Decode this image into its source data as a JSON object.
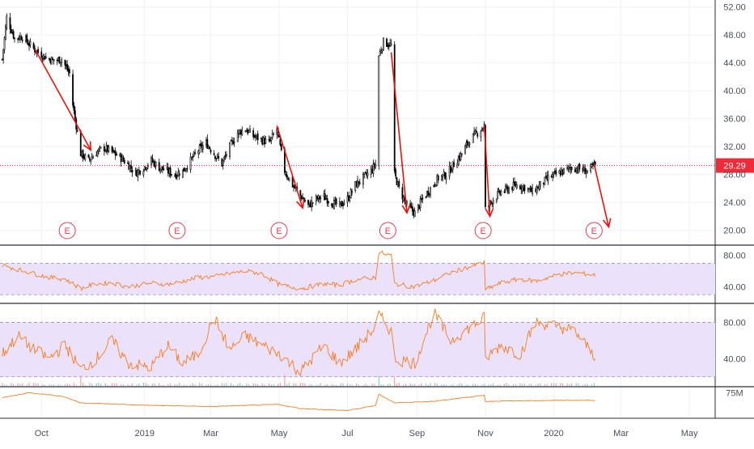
{
  "colors": {
    "up_candle": "#ffffff",
    "down_candle": "#000000",
    "candle_outline": "#000000",
    "arrow": "#e8120e",
    "price_line": "#e8120e",
    "price_label_bg": "#ef2b3a",
    "earnings_marker": "#e33b4f",
    "oscillator_line": "#f57c25",
    "band_fill": "#ece1fb",
    "band_border": "#9c8ab0",
    "grid": "#eef1f6",
    "axis_text": "#4a4f5c",
    "volume_up": "#8fcfc6",
    "volume_down": "#f0a3a3"
  },
  "icons": {
    "earnings": "earnings-circle-E-icon",
    "arrow": "red-down-arrow-icon"
  },
  "labels": {
    "last_price": "29.29",
    "earnings_letter": "E"
  },
  "chart_data": [
    {
      "type": "candlestick",
      "title": "",
      "y_ticks": [
        "52.00",
        "48.00",
        "44.00",
        "40.00",
        "36.00",
        "32.00",
        "28.00",
        "24.00",
        "20.00"
      ],
      "y_tick_values": [
        52,
        48,
        44,
        40,
        36,
        32,
        28,
        24,
        20
      ],
      "ylim": [
        18,
        53
      ],
      "x_ticks": [
        "Oct",
        "2019",
        "Mar",
        "May",
        "Jul",
        "Sep",
        "Nov",
        "2020",
        "Mar",
        "May"
      ],
      "x_tick_dates": [
        "2018-10-01",
        "2019-01-01",
        "2019-03-01",
        "2019-05-01",
        "2019-07-01",
        "2019-09-01",
        "2019-11-01",
        "2020-01-01",
        "2020-03-01",
        "2020-05-01"
      ],
      "date_range": [
        "2018-08-25",
        "2020-05-24"
      ],
      "last_price": 29.29,
      "price_path": [
        [
          "2018-08-27",
          44.5
        ],
        [
          "2018-08-31",
          50.5
        ],
        [
          "2018-09-07",
          47.5
        ],
        [
          "2018-09-14",
          47.8
        ],
        [
          "2018-09-21",
          46.5
        ],
        [
          "2018-09-28",
          45.5
        ],
        [
          "2018-10-05",
          44.8
        ],
        [
          "2018-10-12",
          44.3
        ],
        [
          "2018-10-19",
          44.5
        ],
        [
          "2018-10-26",
          42.5
        ],
        [
          "2018-10-29",
          38.0
        ],
        [
          "2018-11-01",
          35.0
        ],
        [
          "2018-11-05",
          31.0
        ],
        [
          "2018-11-12",
          30.0
        ],
        [
          "2018-11-19",
          31.2
        ],
        [
          "2018-11-26",
          31.8
        ],
        [
          "2018-12-03",
          31.2
        ],
        [
          "2018-12-10",
          30.5
        ],
        [
          "2018-12-17",
          29.5
        ],
        [
          "2018-12-24",
          28.2
        ],
        [
          "2018-12-31",
          29.0
        ],
        [
          "2019-01-07",
          30.0
        ],
        [
          "2019-01-14",
          29.0
        ],
        [
          "2019-01-21",
          28.5
        ],
        [
          "2019-01-28",
          28.0
        ],
        [
          "2019-02-04",
          28.5
        ],
        [
          "2019-02-11",
          30.0
        ],
        [
          "2019-02-18",
          31.5
        ],
        [
          "2019-02-25",
          32.5
        ],
        [
          "2019-03-04",
          31.0
        ],
        [
          "2019-03-11",
          29.5
        ],
        [
          "2019-03-18",
          32.0
        ],
        [
          "2019-03-25",
          34.0
        ],
        [
          "2019-04-01",
          34.5
        ],
        [
          "2019-04-08",
          33.5
        ],
        [
          "2019-04-15",
          33.0
        ],
        [
          "2019-04-22",
          32.5
        ],
        [
          "2019-04-29",
          34.5
        ],
        [
          "2019-05-03",
          31.0
        ],
        [
          "2019-05-06",
          28.5
        ],
        [
          "2019-05-13",
          26.5
        ],
        [
          "2019-05-20",
          25.0
        ],
        [
          "2019-05-27",
          23.5
        ],
        [
          "2019-06-03",
          24.5
        ],
        [
          "2019-06-10",
          24.8
        ],
        [
          "2019-06-17",
          24.0
        ],
        [
          "2019-06-24",
          23.5
        ],
        [
          "2019-07-01",
          24.5
        ],
        [
          "2019-07-08",
          26.5
        ],
        [
          "2019-07-15",
          27.5
        ],
        [
          "2019-07-22",
          28.5
        ],
        [
          "2019-07-26",
          29.5
        ],
        [
          "2019-07-29",
          45.0
        ],
        [
          "2019-08-02",
          47.0
        ],
        [
          "2019-08-09",
          46.5
        ],
        [
          "2019-08-12",
          28.0
        ],
        [
          "2019-08-16",
          26.0
        ],
        [
          "2019-08-23",
          23.5
        ],
        [
          "2019-08-30",
          22.5
        ],
        [
          "2019-09-06",
          24.5
        ],
        [
          "2019-09-13",
          26.0
        ],
        [
          "2019-09-20",
          27.5
        ],
        [
          "2019-09-27",
          28.0
        ],
        [
          "2019-10-04",
          29.5
        ],
        [
          "2019-10-11",
          31.0
        ],
        [
          "2019-10-18",
          33.0
        ],
        [
          "2019-10-25",
          34.0
        ],
        [
          "2019-10-31",
          35.0
        ],
        [
          "2019-11-01",
          23.0
        ],
        [
          "2019-11-08",
          24.5
        ],
        [
          "2019-11-15",
          25.5
        ],
        [
          "2019-11-22",
          26.0
        ],
        [
          "2019-11-29",
          26.5
        ],
        [
          "2019-12-06",
          26.2
        ],
        [
          "2019-12-13",
          25.5
        ],
        [
          "2019-12-20",
          26.5
        ],
        [
          "2019-12-27",
          27.5
        ],
        [
          "2020-01-03",
          28.0
        ],
        [
          "2020-01-10",
          28.5
        ],
        [
          "2020-01-17",
          29.0
        ],
        [
          "2020-01-24",
          28.8
        ],
        [
          "2020-01-31",
          28.5
        ],
        [
          "2020-02-07",
          29.29
        ]
      ],
      "earnings_dates": [
        "2018-10-24",
        "2019-01-30",
        "2019-05-01",
        "2019-08-06",
        "2019-10-30",
        "2020-02-06"
      ],
      "arrows": [
        {
          "from": [
            "2018-09-25",
            46.0
          ],
          "to": [
            "2018-11-14",
            31.5
          ]
        },
        {
          "from": [
            "2019-04-29",
            35.0
          ],
          "to": [
            "2019-05-22",
            23.2
          ]
        },
        {
          "from": [
            "2019-08-09",
            45.5
          ],
          "to": [
            "2019-08-23",
            22.5
          ]
        },
        {
          "from": [
            "2019-10-31",
            35.0
          ],
          "to": [
            "2019-11-05",
            22.0
          ]
        },
        {
          "from": [
            "2020-02-06",
            29.5
          ],
          "to": [
            "2020-02-19",
            20.5
          ]
        }
      ]
    },
    {
      "type": "line",
      "series": [
        {
          "values_path": [
            [
              "2018-08-27",
              68
            ],
            [
              "2018-09-10",
              62
            ],
            [
              "2018-09-24",
              57
            ],
            [
              "2018-10-08",
              52
            ],
            [
              "2018-10-22",
              50
            ],
            [
              "2018-11-05",
              38
            ],
            [
              "2018-11-19",
              44
            ],
            [
              "2018-12-03",
              45
            ],
            [
              "2018-12-17",
              40
            ],
            [
              "2019-01-07",
              45
            ],
            [
              "2019-01-21",
              43
            ],
            [
              "2019-02-04",
              47
            ],
            [
              "2019-02-18",
              52
            ],
            [
              "2019-03-04",
              53
            ],
            [
              "2019-03-18",
              57
            ],
            [
              "2019-04-01",
              60
            ],
            [
              "2019-04-15",
              57
            ],
            [
              "2019-05-02",
              42
            ],
            [
              "2019-05-20",
              38
            ],
            [
              "2019-06-10",
              44
            ],
            [
              "2019-06-24",
              42
            ],
            [
              "2019-07-08",
              49
            ],
            [
              "2019-07-26",
              52
            ],
            [
              "2019-07-29",
              84
            ],
            [
              "2019-08-09",
              80
            ],
            [
              "2019-08-12",
              44
            ],
            [
              "2019-08-30",
              40
            ],
            [
              "2019-09-16",
              48
            ],
            [
              "2019-10-01",
              58
            ],
            [
              "2019-10-31",
              71
            ],
            [
              "2019-11-01",
              36
            ],
            [
              "2019-11-15",
              45
            ],
            [
              "2019-12-02",
              50
            ],
            [
              "2019-12-16",
              47
            ],
            [
              "2020-01-06",
              56
            ],
            [
              "2020-01-20",
              58
            ],
            [
              "2020-02-07",
              55
            ]
          ]
        }
      ],
      "y_ticks": [
        "80.00",
        "40.00"
      ],
      "y_tick_values": [
        80,
        40
      ],
      "band": [
        30,
        70
      ],
      "ylim": [
        20,
        92
      ]
    },
    {
      "type": "line",
      "series": [
        {
          "values_path": [
            [
              "2018-08-27",
              45
            ],
            [
              "2018-09-10",
              65
            ],
            [
              "2018-09-24",
              50
            ],
            [
              "2018-10-08",
              40
            ],
            [
              "2018-10-22",
              55
            ],
            [
              "2018-11-05",
              28
            ],
            [
              "2018-11-19",
              40
            ],
            [
              "2018-12-03",
              60
            ],
            [
              "2018-12-17",
              35
            ],
            [
              "2019-01-07",
              30
            ],
            [
              "2019-01-21",
              55
            ],
            [
              "2019-02-04",
              35
            ],
            [
              "2019-02-18",
              45
            ],
            [
              "2019-03-04",
              85
            ],
            [
              "2019-03-18",
              50
            ],
            [
              "2019-04-01",
              65
            ],
            [
              "2019-04-15",
              55
            ],
            [
              "2019-05-02",
              45
            ],
            [
              "2019-05-20",
              25
            ],
            [
              "2019-06-10",
              55
            ],
            [
              "2019-06-24",
              35
            ],
            [
              "2019-07-08",
              50
            ],
            [
              "2019-07-26",
              75
            ],
            [
              "2019-07-29",
              88
            ],
            [
              "2019-08-09",
              70
            ],
            [
              "2019-08-12",
              40
            ],
            [
              "2019-08-30",
              35
            ],
            [
              "2019-09-16",
              90
            ],
            [
              "2019-10-01",
              60
            ],
            [
              "2019-10-31",
              85
            ],
            [
              "2019-11-01",
              40
            ],
            [
              "2019-11-15",
              55
            ],
            [
              "2019-12-02",
              45
            ],
            [
              "2019-12-16",
              80
            ],
            [
              "2020-01-06",
              75
            ],
            [
              "2020-01-20",
              70
            ],
            [
              "2020-02-07",
              42
            ]
          ]
        }
      ],
      "y_ticks": [
        "80.00",
        "40.00"
      ],
      "y_tick_values": [
        80,
        40
      ],
      "band": [
        20,
        80
      ],
      "ylim": [
        10,
        100
      ]
    },
    {
      "type": "line",
      "series": [
        {
          "values_path": [
            [
              "2018-08-27",
              65
            ],
            [
              "2018-09-20",
              75
            ],
            [
              "2018-10-20",
              68
            ],
            [
              "2018-11-05",
              55
            ],
            [
              "2019-01-07",
              50
            ],
            [
              "2019-03-04",
              48
            ],
            [
              "2019-04-30",
              52
            ],
            [
              "2019-05-20",
              44
            ],
            [
              "2019-07-01",
              40
            ],
            [
              "2019-07-26",
              50
            ],
            [
              "2019-07-29",
              72
            ],
            [
              "2019-08-12",
              55
            ],
            [
              "2019-09-16",
              58
            ],
            [
              "2019-10-31",
              70
            ],
            [
              "2019-11-01",
              58
            ],
            [
              "2020-01-06",
              60
            ],
            [
              "2020-02-07",
              60
            ]
          ]
        }
      ],
      "y_ticks": [
        "75M"
      ],
      "y_tick_values": [
        75
      ],
      "ylim": [
        25,
        85
      ]
    }
  ]
}
